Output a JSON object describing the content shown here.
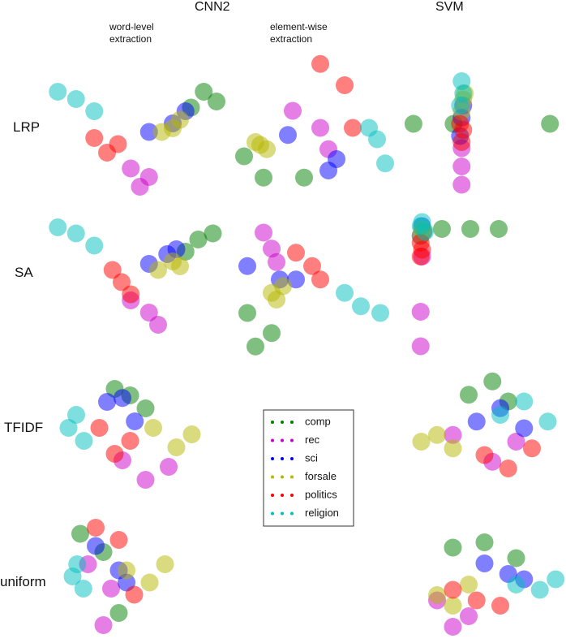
{
  "chart_data": {
    "type": "scatter",
    "column_titles": [
      "CNN2",
      "SVM"
    ],
    "subtitles": [
      "word-level extraction",
      "element-wise extraction"
    ],
    "row_labels": [
      "LRP",
      "SA",
      "TFIDF",
      "uniform"
    ],
    "series": [
      {
        "name": "comp",
        "color": "#008000"
      },
      {
        "name": "rec",
        "color": "#cc00cc"
      },
      {
        "name": "sci",
        "color": "#0000ff"
      },
      {
        "name": "forsale",
        "color": "#b5b500"
      },
      {
        "name": "politics",
        "color": "#ff0000"
      },
      {
        "name": "religion",
        "color": "#00bfbf"
      }
    ],
    "panels": [
      {
        "xlim": [
          0,
          100
        ],
        "ylim": [
          0,
          100
        ],
        "classes": [
          {
            "x": [
              78,
              85,
              92
            ],
            "y": [
              75,
              88,
              80
            ]
          },
          {
            "x": [
              45,
              50,
              55
            ],
            "y": [
              25,
              10,
              18
            ]
          },
          {
            "x": [
              55,
              68,
              75
            ],
            "y": [
              55,
              62,
              72
            ]
          },
          {
            "x": [
              62,
              68,
              72
            ],
            "y": [
              55,
              58,
              65
            ]
          },
          {
            "x": [
              25,
              32,
              38
            ],
            "y": [
              50,
              38,
              45
            ]
          },
          {
            "x": [
              5,
              15,
              25
            ],
            "y": [
              88,
              82,
              72
            ]
          }
        ]
      },
      {
        "xlim": [
          0,
          100
        ],
        "ylim": [
          0,
          100
        ],
        "classes": [
          {
            "x": [
              8,
              45,
              20
            ],
            "y": [
              30,
              15,
              15
            ]
          },
          {
            "x": [
              38,
              55,
              60
            ],
            "y": [
              62,
              50,
              35
            ]
          },
          {
            "x": [
              35,
              65,
              60
            ],
            "y": [
              45,
              28,
              20
            ]
          },
          {
            "x": [
              15,
              18,
              22
            ],
            "y": [
              40,
              38,
              35
            ]
          },
          {
            "x": [
              55,
              70,
              75
            ],
            "y": [
              95,
              80,
              50
            ]
          },
          {
            "x": [
              85,
              90,
              95
            ],
            "y": [
              50,
              42,
              25
            ]
          }
        ]
      },
      {
        "xlim": [
          0,
          100
        ],
        "ylim": [
          0,
          100
        ],
        "classes": [
          {
            "x": [
              5,
              30,
              90
            ],
            "y": [
              55,
              55,
              55
            ]
          },
          {
            "x": [
              35,
              35,
              35
            ],
            "y": [
              20,
              5,
              35
            ]
          },
          {
            "x": [
              35,
              36,
              34
            ],
            "y": [
              60,
              70,
              45
            ]
          },
          {
            "x": [
              36,
              35,
              37
            ],
            "y": [
              75,
              65,
              80
            ]
          },
          {
            "x": [
              34,
              36,
              35
            ],
            "y": [
              55,
              50,
              40
            ]
          },
          {
            "x": [
              35,
              36,
              34
            ],
            "y": [
              90,
              80,
              70
            ]
          }
        ]
      },
      {
        "xlim": [
          0,
          100
        ],
        "ylim": [
          0,
          100
        ],
        "classes": [
          {
            "x": [
              82,
              90,
              75
            ],
            "y": [
              80,
              85,
              70
            ]
          },
          {
            "x": [
              45,
              55,
              60
            ],
            "y": [
              30,
              20,
              10
            ]
          },
          {
            "x": [
              55,
              65,
              70
            ],
            "y": [
              60,
              68,
              72
            ]
          },
          {
            "x": [
              60,
              68,
              72
            ],
            "y": [
              55,
              62,
              58
            ]
          },
          {
            "x": [
              35,
              40,
              45
            ],
            "y": [
              55,
              45,
              35
            ]
          },
          {
            "x": [
              5,
              15,
              25
            ],
            "y": [
              90,
              85,
              75
            ]
          }
        ]
      },
      {
        "xlim": [
          0,
          100
        ],
        "ylim": [
          0,
          100
        ],
        "classes": [
          {
            "x": [
              10,
              25,
              15
            ],
            "y": [
              30,
              15,
              5
            ]
          },
          {
            "x": [
              20,
              25,
              28
            ],
            "y": [
              90,
              78,
              68
            ]
          },
          {
            "x": [
              10,
              30,
              40
            ],
            "y": [
              65,
              55,
              55
            ]
          },
          {
            "x": [
              25,
              28,
              32
            ],
            "y": [
              45,
              40,
              50
            ]
          },
          {
            "x": [
              40,
              50,
              55
            ],
            "y": [
              75,
              65,
              55
            ]
          },
          {
            "x": [
              70,
              80,
              92
            ],
            "y": [
              45,
              35,
              30
            ]
          }
        ]
      },
      {
        "xlim": [
          0,
          100
        ],
        "ylim": [
          0,
          100
        ],
        "classes": [
          {
            "x": [
              20,
              40,
              60
            ],
            "y": [
              90,
              90,
              90
            ]
          },
          {
            "x": [
              5,
              6,
              5
            ],
            "y": [
              30,
              70,
              5
            ]
          },
          {
            "x": [
              6,
              7,
              5
            ],
            "y": [
              92,
              88,
              85
            ]
          },
          {
            "x": [
              6,
              5,
              7
            ],
            "y": [
              90,
              85,
              88
            ]
          },
          {
            "x": [
              5,
              6,
              5
            ],
            "y": [
              80,
              75,
              70
            ]
          },
          {
            "x": [
              6,
              8,
              5
            ],
            "y": [
              95,
              88,
              92
            ]
          }
        ]
      },
      {
        "xlim": [
          0,
          100
        ],
        "ylim": [
          0,
          100
        ],
        "classes": [
          {
            "x": [
              35,
              45,
              55
            ],
            "y": [
              85,
              80,
              70
            ]
          },
          {
            "x": [
              40,
              55,
              70
            ],
            "y": [
              30,
              15,
              25
            ]
          },
          {
            "x": [
              30,
              40,
              48
            ],
            "y": [
              75,
              78,
              60
            ]
          },
          {
            "x": [
              60,
              75,
              85
            ],
            "y": [
              55,
              40,
              50
            ]
          },
          {
            "x": [
              25,
              35,
              45
            ],
            "y": [
              55,
              35,
              45
            ]
          },
          {
            "x": [
              5,
              10,
              15
            ],
            "y": [
              55,
              65,
              45
            ]
          }
        ]
      },
      {
        "xlim": [
          0,
          100
        ],
        "ylim": [
          0,
          100
        ],
        "classes": [
          {
            "x": [
              40,
              55,
              65
            ],
            "y": [
              75,
              85,
              70
            ]
          },
          {
            "x": [
              30,
              55,
              70
            ],
            "y": [
              45,
              25,
              40
            ]
          },
          {
            "x": [
              45,
              60,
              75
            ],
            "y": [
              55,
              65,
              50
            ]
          },
          {
            "x": [
              10,
              20,
              30
            ],
            "y": [
              40,
              45,
              35
            ]
          },
          {
            "x": [
              50,
              65,
              80
            ],
            "y": [
              30,
              20,
              35
            ]
          },
          {
            "x": [
              60,
              75,
              90
            ],
            "y": [
              60,
              70,
              55
            ]
          }
        ]
      },
      {
        "xlim": [
          0,
          100
        ],
        "ylim": [
          0,
          100
        ],
        "classes": [
          {
            "x": [
              10,
              25,
              35
            ],
            "y": [
              85,
              70,
              20
            ]
          },
          {
            "x": [
              15,
              30,
              25
            ],
            "y": [
              60,
              40,
              10
            ]
          },
          {
            "x": [
              20,
              35,
              40
            ],
            "y": [
              75,
              55,
              45
            ]
          },
          {
            "x": [
              40,
              55,
              65
            ],
            "y": [
              55,
              45,
              60
            ]
          },
          {
            "x": [
              20,
              35,
              45
            ],
            "y": [
              90,
              80,
              35
            ]
          },
          {
            "x": [
              5,
              8,
              12
            ],
            "y": [
              50,
              60,
              40
            ]
          }
        ]
      },
      {
        "xlim": [
          0,
          100
        ],
        "ylim": [
          0,
          100
        ],
        "classes": [
          {
            "x": [
              30,
              50,
              70
            ],
            "y": [
              85,
              90,
              75
            ]
          },
          {
            "x": [
              20,
              40,
              30
            ],
            "y": [
              35,
              20,
              10
            ]
          },
          {
            "x": [
              50,
              65,
              75
            ],
            "y": [
              70,
              60,
              55
            ]
          },
          {
            "x": [
              20,
              30,
              40
            ],
            "y": [
              40,
              30,
              50
            ]
          },
          {
            "x": [
              30,
              45,
              60
            ],
            "y": [
              45,
              35,
              30
            ]
          },
          {
            "x": [
              70,
              85,
              95
            ],
            "y": [
              50,
              45,
              55
            ]
          }
        ]
      }
    ]
  }
}
